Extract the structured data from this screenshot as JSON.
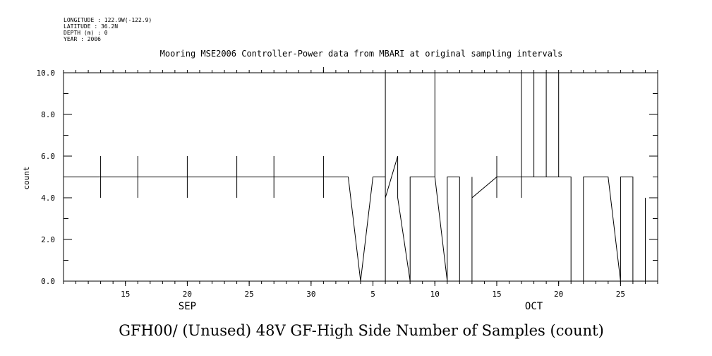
{
  "meta": {
    "longitude": "LONGITUDE : 122.9W(-122.9)",
    "latitude": "LATITUDE : 36.2N",
    "depth": "DEPTH (m) : 0",
    "year": "YEAR : 2006"
  },
  "chart_data": {
    "type": "line",
    "title": "Mooring MSE2006 Controller-Power data from MBARI at original sampling intervals",
    "bottom_title": "GFH00/ (Unused) 48V GF-High Side Number of Samples (count)",
    "ylabel": "count",
    "xlabel": "",
    "ylim": [
      0,
      10
    ],
    "yticks": [
      "0.0",
      "2.0",
      "4.0",
      "6.0",
      "8.0",
      "10.0"
    ],
    "x_axis": {
      "start": "2006-09-10",
      "end": "2006-10-28",
      "tick_labels": [
        {
          "date": "2006-09-15",
          "label": "15"
        },
        {
          "date": "2006-09-20",
          "label": "20"
        },
        {
          "date": "2006-09-25",
          "label": "25"
        },
        {
          "date": "2006-09-30",
          "label": "30"
        },
        {
          "date": "2006-10-05",
          "label": "5"
        },
        {
          "date": "2006-10-10",
          "label": "10"
        },
        {
          "date": "2006-10-15",
          "label": "15"
        },
        {
          "date": "2006-10-20",
          "label": "20"
        },
        {
          "date": "2006-10-25",
          "label": "25"
        }
      ],
      "month_labels": [
        {
          "date": "2006-09-20",
          "label": "SEP"
        },
        {
          "date": "2006-10-18",
          "label": "OCT"
        }
      ]
    },
    "series": [
      {
        "x": [
          "2006-09-10",
          "2006-09-13",
          "2006-09-13",
          "2006-09-13",
          "2006-09-13",
          "2006-09-16",
          "2006-09-16",
          "2006-09-16",
          "2006-09-16",
          "2006-09-20",
          "2006-09-20",
          "2006-09-20",
          "2006-09-20",
          "2006-09-24",
          "2006-09-24",
          "2006-09-24",
          "2006-09-24",
          "2006-09-27",
          "2006-09-27",
          "2006-09-27",
          "2006-09-27",
          "2006-10-01",
          "2006-10-01",
          "2006-10-01",
          "2006-10-01",
          "2006-10-03",
          "2006-10-04",
          "2006-10-04",
          "2006-10-05",
          "2006-10-05",
          "2006-10-06",
          "2006-10-06",
          "2006-10-06",
          "2006-10-06",
          "2006-10-06",
          "2006-10-06",
          "2006-10-07",
          "2006-10-07",
          "2006-10-07",
          "2006-10-07",
          "2006-10-07",
          "2006-10-07",
          "2006-10-08",
          "2006-10-08",
          "2006-10-08",
          "2006-10-08",
          "2006-10-10",
          "2006-10-10",
          "2006-10-10",
          "2006-10-10",
          "2006-10-11",
          "2006-10-11",
          "2006-10-12",
          "2006-10-12",
          "2006-10-13",
          "2006-10-13",
          "2006-10-13",
          "2006-10-13",
          "2006-10-15",
          "2006-10-15",
          "2006-10-15",
          "2006-10-15",
          "2006-10-17",
          "2006-10-17",
          "2006-10-17",
          "2006-10-17",
          "2006-10-18",
          "2006-10-18",
          "2006-10-18",
          "2006-10-18",
          "2006-10-19",
          "2006-10-19",
          "2006-10-19",
          "2006-10-19",
          "2006-10-20",
          "2006-10-20",
          "2006-10-20",
          "2006-10-20",
          "2006-10-21",
          "2006-10-21",
          "2006-10-22",
          "2006-10-22",
          "2006-10-24",
          "2006-10-25",
          "2006-10-25",
          "2006-10-26",
          "2006-10-26",
          "2006-10-27",
          "2006-10-27",
          "2006-10-27"
        ],
        "y": [
          5,
          5,
          6,
          4,
          5,
          5,
          6,
          4,
          5,
          5,
          6,
          4,
          5,
          5,
          6,
          4,
          5,
          5,
          6,
          4,
          5,
          5,
          6,
          4,
          5,
          5,
          0,
          0,
          5,
          5,
          5,
          0,
          5,
          5,
          10,
          4,
          6,
          4,
          5,
          5,
          5,
          4,
          0,
          0,
          5,
          5,
          5,
          10,
          5,
          5,
          0,
          5,
          5,
          0,
          0,
          5,
          5,
          4,
          5,
          6,
          4,
          5,
          5,
          10,
          4,
          5,
          5,
          10,
          5,
          5,
          5,
          10,
          5,
          5,
          5,
          10,
          5,
          5,
          5,
          0,
          0,
          5,
          5,
          0,
          5,
          5,
          0,
          0,
          4,
          0
        ]
      }
    ],
    "grid": false,
    "line_color": "#000000"
  }
}
